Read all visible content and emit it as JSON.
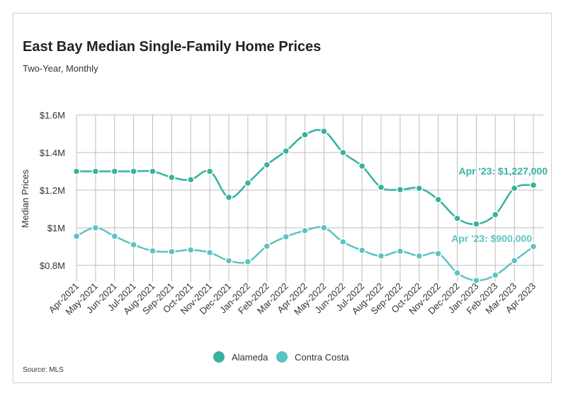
{
  "chart_data": {
    "type": "line",
    "title": "East Bay Median Single-Family Home Prices",
    "subtitle": "Two-Year, Monthly",
    "source": "Source:  MLS",
    "ylabel": "Median Prices",
    "ylim": [
      700000,
      1600000
    ],
    "y_ticks": [
      800000,
      1000000,
      1200000,
      1400000,
      1600000
    ],
    "y_tick_labels": [
      "$0.8M",
      "$1M",
      "$1.2M",
      "$1.4M",
      "$1.6M"
    ],
    "grid": true,
    "legend_position": "bottom",
    "categories": [
      "Apr-2021",
      "May-2021",
      "Jun-2021",
      "Jul-2021",
      "Aug-2021",
      "Sep-2021",
      "Oct-2021",
      "Nov-2021",
      "Dec-2021",
      "Jan-2022",
      "Feb-2022",
      "Mar-2022",
      "Apr-2022",
      "May-2022",
      "Jun-2022",
      "Jul-2022",
      "Aug-2022",
      "Sep-2022",
      "Oct-2022",
      "Nov-2022",
      "Dec-2022",
      "Jan-2023",
      "Feb-2023",
      "Mar-2023",
      "Apr-2023"
    ],
    "series": [
      {
        "name": "Alameda",
        "color": "#35b39d",
        "values": [
          1300000,
          1300000,
          1300000,
          1300000,
          1300000,
          1268000,
          1256000,
          1300000,
          1162000,
          1238000,
          1335000,
          1408000,
          1495000,
          1513000,
          1400000,
          1328000,
          1215000,
          1203000,
          1210000,
          1150000,
          1050000,
          1020000,
          1070000,
          1210000,
          1227000
        ],
        "annotation": "Apr '23: $1,227,000"
      },
      {
        "name": "Contra Costa",
        "color": "#5cc3c3",
        "values": [
          955000,
          1000000,
          955000,
          910000,
          877000,
          873000,
          882000,
          868000,
          825000,
          820000,
          902000,
          952000,
          985000,
          1000000,
          925000,
          880000,
          850000,
          875000,
          850000,
          863000,
          760000,
          720000,
          748000,
          825000,
          900000
        ],
        "annotation": "Apr '23: $900,000"
      }
    ]
  }
}
